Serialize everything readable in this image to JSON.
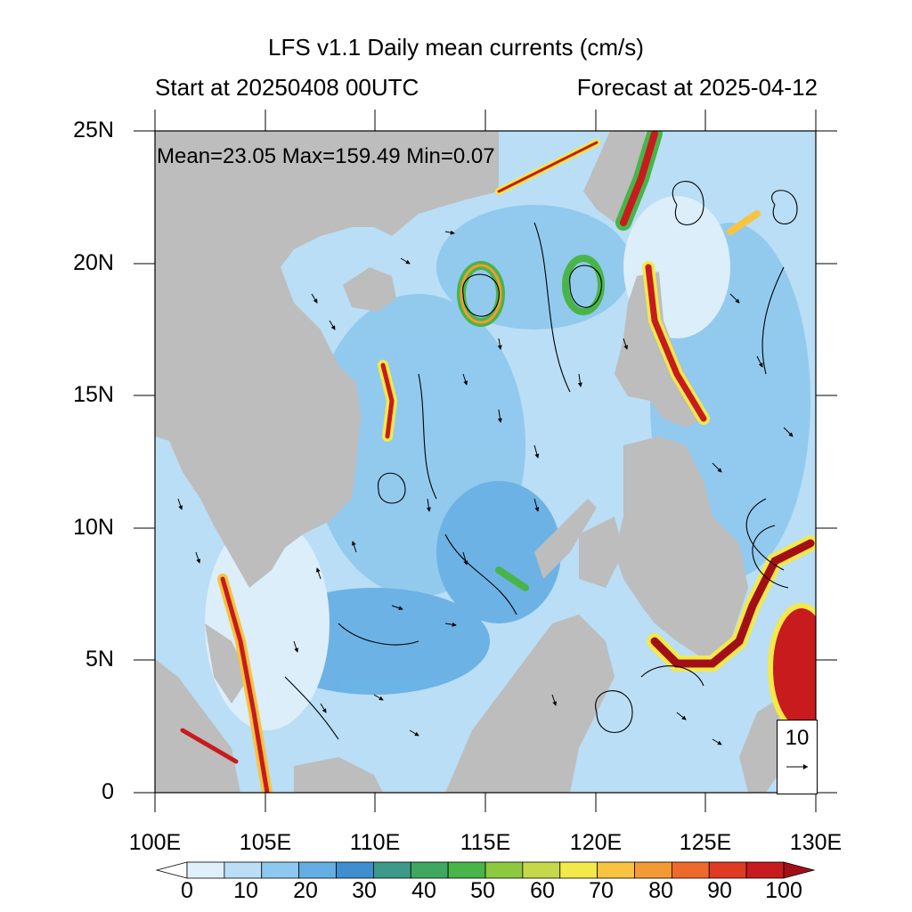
{
  "title": "LFS v1.1 Daily mean currents (cm/s)",
  "start_label": "Start at 20250408 00UTC",
  "forecast_label": "Forecast at 2025-04-12",
  "stats": "Mean=23.05  Max=159.49  Min=0.07",
  "lat_labels": [
    "25N",
    "20N",
    "15N",
    "10N",
    "5N",
    "0"
  ],
  "lon_labels": [
    "100E",
    "105E",
    "110E",
    "115E",
    "120E",
    "125E",
    "130E"
  ],
  "reference_vector": "10",
  "colorbar": {
    "labels": [
      "0",
      "10",
      "20",
      "30",
      "40",
      "50",
      "60",
      "70",
      "80",
      "90",
      "100"
    ],
    "colors": [
      "#ffffff",
      "#dff0fb",
      "#b9def5",
      "#8ec8ee",
      "#64aee4",
      "#3f8fd0",
      "#3d9a8a",
      "#3fa860",
      "#48b548",
      "#8cc840",
      "#c5d84a",
      "#f3e94a",
      "#f7c340",
      "#f49a35",
      "#ee6a2c",
      "#df3a22",
      "#c71b1e",
      "#a30f17"
    ]
  },
  "map_colors": {
    "land": "#bdbdbd",
    "water_low": "#dff0fb",
    "water_mid": "#8ec8ee",
    "water_high": "#3f8fd0",
    "current_strong": "#c71b1e",
    "current_mid": "#f3e94a",
    "current_green": "#48b548"
  }
}
